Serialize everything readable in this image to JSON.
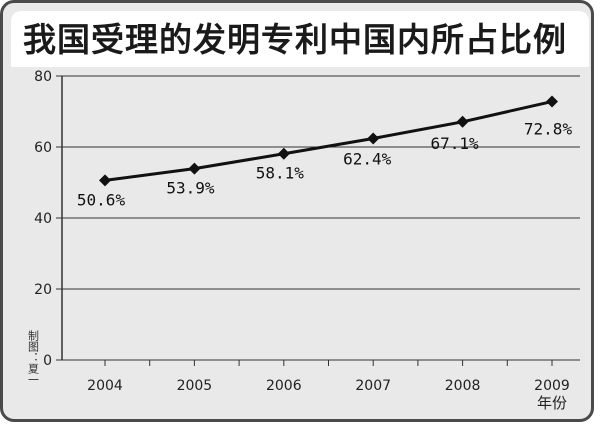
{
  "chart_data": {
    "type": "line",
    "title": "我国受理的发明专利中国内所占比例",
    "x": [
      "2004",
      "2005",
      "2006",
      "2007",
      "2008",
      "2009"
    ],
    "series": [
      {
        "values": [
          50.6,
          53.9,
          58.1,
          62.4,
          67.1,
          72.8
        ]
      }
    ],
    "data_labels": [
      "50.6%",
      "53.9%",
      "58.1%",
      "62.4%",
      "67.1%",
      "72.8%"
    ],
    "xlabel": "年份",
    "ylabel": "",
    "ylim": [
      0,
      80
    ],
    "yticks": [
      "0",
      "20",
      "40",
      "60",
      "80"
    ],
    "grid": true,
    "credit": "制图：夏一",
    "colors": {
      "line": "#111111",
      "marker": "#111111",
      "grid": "#333333",
      "background": "#e9e9e9"
    }
  }
}
